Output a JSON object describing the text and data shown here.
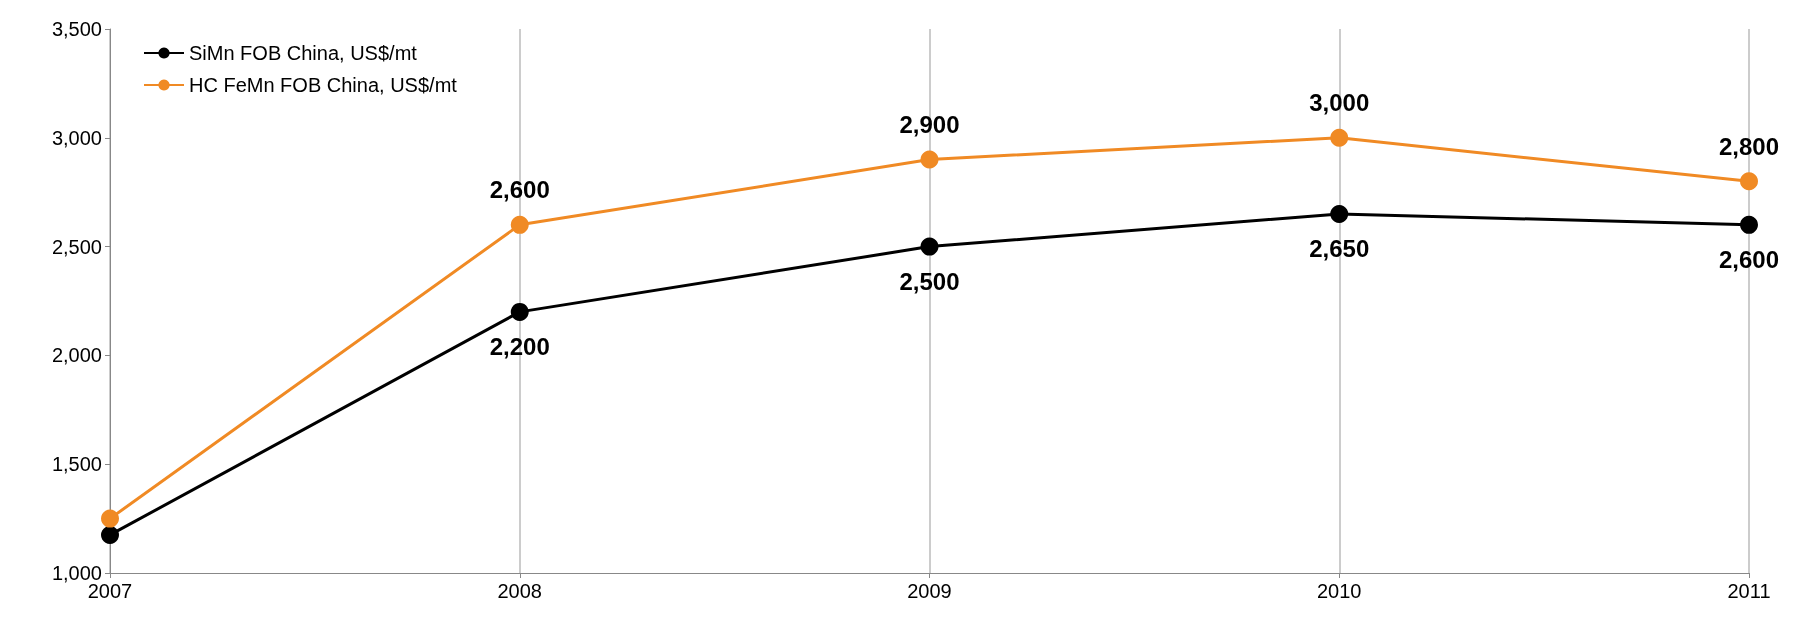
{
  "chart_data": {
    "type": "line",
    "x": [
      2007,
      2008,
      2009,
      2010,
      2011
    ],
    "xlim": [
      2007,
      2011
    ],
    "xticks": [
      2007,
      2008,
      2009,
      2010,
      2011
    ],
    "ylim": [
      1000,
      3500
    ],
    "yticks": [
      {
        "value": 1000,
        "label": "1,000"
      },
      {
        "value": 1500,
        "label": "1,500"
      },
      {
        "value": 2000,
        "label": "2,000"
      },
      {
        "value": 2500,
        "label": "2,500"
      },
      {
        "value": 3000,
        "label": "3,000"
      },
      {
        "value": 3500,
        "label": "3,500"
      }
    ],
    "grid": "x",
    "legend": "top left",
    "marker": "circle",
    "line_style": "solid",
    "series": [
      {
        "name": "SiMn FOB China, US$/mt",
        "color": "#000000",
        "values": [
          1175,
          2200,
          2500,
          2650,
          2600
        ],
        "value_labels": [
          null,
          "2,200",
          "2,500",
          "2,650",
          "2,600"
        ]
      },
      {
        "name": "HC FeMn FOB China, US$/mt",
        "color": "#f08a24",
        "values": [
          1250,
          2600,
          2900,
          3000,
          2800
        ],
        "value_labels": [
          null,
          "2,600",
          "2,900",
          "3,000",
          "2,800"
        ]
      }
    ]
  }
}
